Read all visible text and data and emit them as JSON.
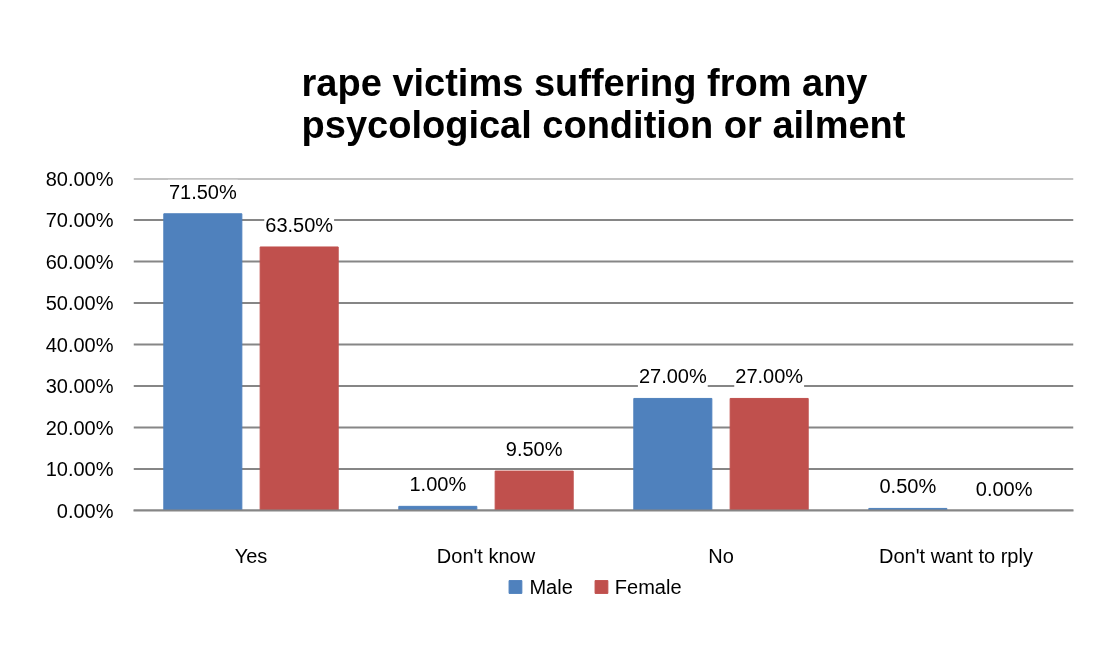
{
  "chart_data": {
    "type": "bar",
    "title": "rape victims suffering from any psycological condition or ailment",
    "categories": [
      "Yes",
      "Don't know",
      "No",
      "Don't want to rply"
    ],
    "series": [
      {
        "name": "Male",
        "color": "#4f81bd",
        "values": [
          71.5,
          1,
          27,
          0.5
        ],
        "value_labels": [
          "71.50%",
          "1.00%",
          "27.00%",
          "0.50%"
        ]
      },
      {
        "name": "Female",
        "color": "#c0504d",
        "values": [
          63.5,
          9.5,
          27,
          0
        ],
        "value_labels": [
          "63.50%",
          "9.50%",
          "27.00%",
          "0.00%"
        ]
      }
    ],
    "ylim": [
      0,
      80
    ],
    "yticks": [
      {
        "value": 0,
        "label": "0.00%"
      },
      {
        "value": 10,
        "label": "10.00%"
      },
      {
        "value": 20,
        "label": "20.00%"
      },
      {
        "value": 30,
        "label": "30.00%"
      },
      {
        "value": 40,
        "label": "40.00%"
      },
      {
        "value": 50,
        "label": "50.00%"
      },
      {
        "value": 60,
        "label": "60.00%"
      },
      {
        "value": 70,
        "label": "70.00%"
      },
      {
        "value": 80,
        "label": "80.00%"
      }
    ],
    "grid": "y",
    "legend": "bottom"
  }
}
